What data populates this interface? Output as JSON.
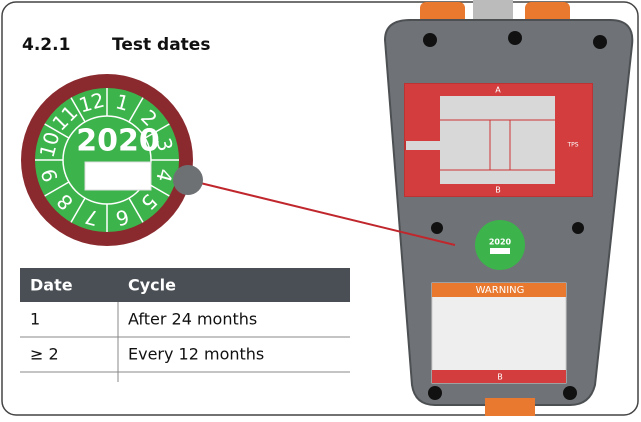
{
  "header": {
    "number": "4.2.1",
    "title": "Test dates"
  },
  "badge": {
    "year": "2020",
    "months": [
      "1",
      "2",
      "3",
      "4",
      "5",
      "6",
      "7",
      "8",
      "9",
      "10",
      "11",
      "12"
    ]
  },
  "table": {
    "header": [
      "Date",
      "Cycle"
    ],
    "rows": [
      [
        "1",
        "After 24 months"
      ],
      [
        "≥ 2",
        "Every 12 months"
      ]
    ]
  },
  "device": {
    "panel_top": "A",
    "panel_bottom": "B",
    "label": "TPS",
    "warning": "WARNING",
    "badge_year": "2020"
  }
}
